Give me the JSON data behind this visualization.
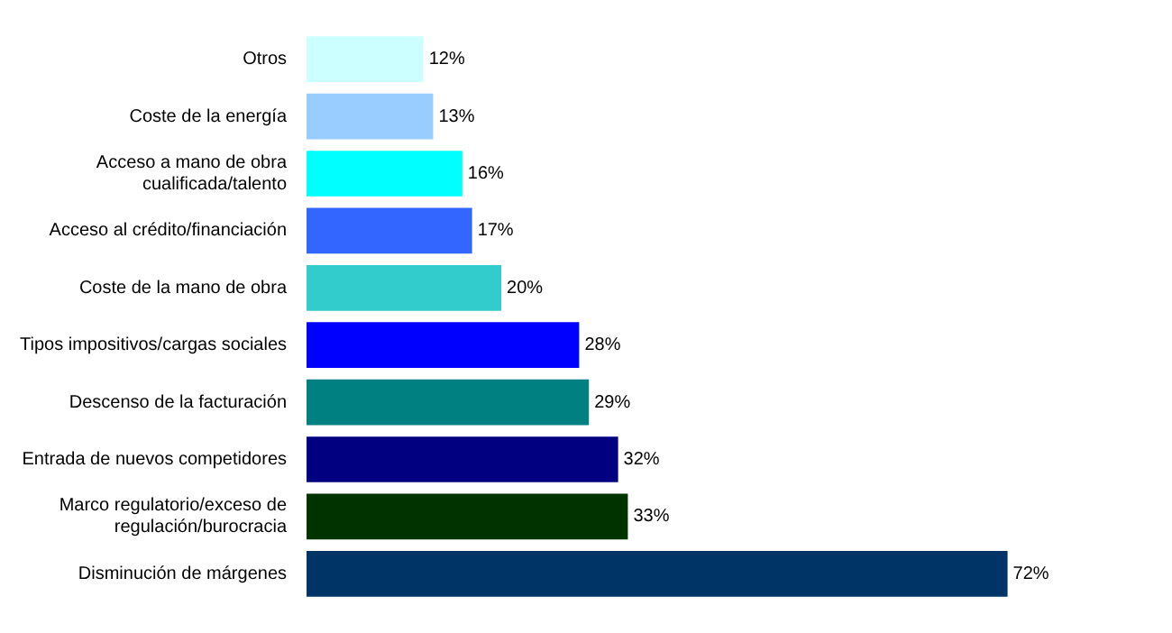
{
  "chart_data": {
    "type": "bar",
    "orientation": "horizontal",
    "categories": [
      "Otros",
      "Coste de la energía",
      "Acceso a mano de obra cualificada/talento",
      "Acceso al crédito/financiación",
      "Coste de la mano de obra",
      "Tipos impositivos/cargas sociales",
      "Descenso de la facturación",
      "Entrada de nuevos competidores",
      "Marco regulatorio/exceso de regulación/burocracia",
      "Disminución de márgenes"
    ],
    "values": [
      12,
      13,
      16,
      17,
      20,
      28,
      29,
      32,
      33,
      72
    ],
    "colors": [
      "#ccffff",
      "#99ccff",
      "#00ffff",
      "#3366ff",
      "#33cccc",
      "#0000ff",
      "#008080",
      "#000080",
      "#003300",
      "#003366"
    ],
    "value_labels": [
      "12%",
      "13%",
      "16%",
      "17%",
      "20%",
      "28%",
      "29%",
      "32%",
      "33%",
      "72%"
    ],
    "legend": false,
    "tick_labels": "y"
  }
}
